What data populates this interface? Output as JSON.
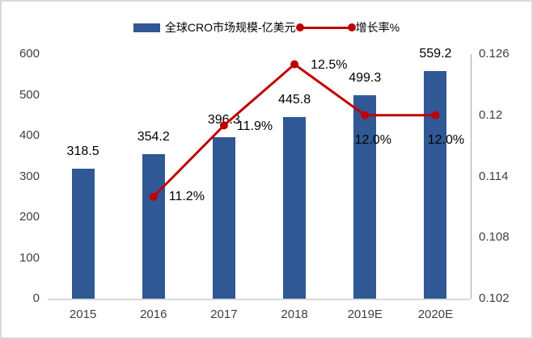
{
  "legend": {
    "bar_label": "全球CRO市场规模-亿美元",
    "line_label": "增长率%"
  },
  "colors": {
    "bar": "#2f5894",
    "line": "#c00000",
    "axis_text": "#3f3f3f",
    "label_text": "#000000",
    "bottom_axis_line": "#d9d9d9",
    "right_axis_line": "#a6a6a6",
    "frame": "#d9d9d9"
  },
  "chart_data": {
    "type": "bar",
    "subtype": "combo-bar-line",
    "title": "",
    "categories": [
      "2015",
      "2016",
      "2017",
      "2018",
      "2019E",
      "2020E"
    ],
    "series": [
      {
        "name": "全球CRO市场规模-亿美元",
        "type": "bar",
        "axis": "left",
        "values": [
          318.5,
          354.2,
          396.3,
          445.8,
          499.3,
          559.2
        ],
        "data_labels": [
          "318.5",
          "354.2",
          "396.3",
          "445.8",
          "499.3",
          "559.2"
        ],
        "color": "#2f5894"
      },
      {
        "name": "增长率%",
        "type": "line",
        "axis": "right",
        "values": [
          null,
          0.112,
          0.119,
          0.125,
          0.12,
          0.12
        ],
        "data_labels": [
          "",
          "11.2%",
          "11.9%",
          "12.5%",
          "12.0%",
          "12.0%"
        ],
        "label_offsets": [
          null,
          {
            "anchor": "left",
            "dx": 19,
            "dy": 0
          },
          {
            "anchor": "left",
            "dx": 16,
            "dy": 2
          },
          {
            "anchor": "left",
            "dx": 20,
            "dy": 1
          },
          {
            "anchor": "center",
            "dx": 10,
            "dy": 31
          },
          {
            "anchor": "center",
            "dx": 13,
            "dy": 31
          }
        ],
        "color": "#c00000"
      }
    ],
    "left_axis": {
      "min": 0,
      "max": 600,
      "step": 100,
      "ticks": [
        "0",
        "100",
        "200",
        "300",
        "400",
        "500",
        "600"
      ]
    },
    "right_axis": {
      "min": 0.102,
      "max": 0.126,
      "step": 0.006,
      "ticks": [
        "0.102",
        "0.108",
        "0.114",
        "0.12",
        "0.126"
      ]
    },
    "legend_position": "top",
    "grid": false
  }
}
